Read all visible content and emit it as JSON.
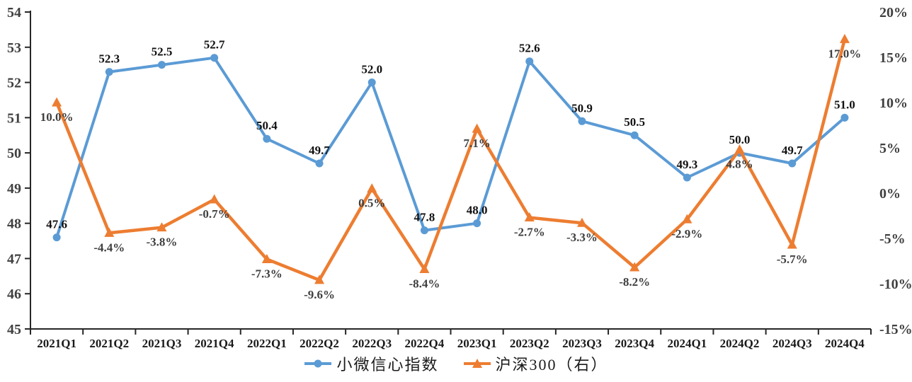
{
  "chart_data": {
    "type": "line",
    "title": "",
    "categories": [
      "2021Q1",
      "2021Q2",
      "2021Q3",
      "2021Q4",
      "2022Q1",
      "2022Q2",
      "2022Q3",
      "2022Q4",
      "2023Q1",
      "2023Q2",
      "2023Q3",
      "2023Q4",
      "2024Q1",
      "2024Q2",
      "2024Q3",
      "2024Q4"
    ],
    "series": [
      {
        "name": "小微信心指数",
        "axis": "left",
        "color": "#5B9BD5",
        "marker": "circle",
        "label_color": "#111111",
        "values": [
          47.6,
          52.3,
          52.5,
          52.7,
          50.4,
          49.7,
          52.0,
          47.8,
          48.0,
          52.6,
          50.9,
          50.5,
          49.3,
          50.0,
          49.7,
          51.0
        ],
        "labels": [
          "47.6",
          "52.3",
          "52.5",
          "52.7",
          "50.4",
          "49.7",
          "52.0",
          "47.8",
          "48.0",
          "52.6",
          "50.9",
          "50.5",
          "49.3",
          "50.0",
          "49.7",
          "51.0"
        ]
      },
      {
        "name": "沪深300（右）",
        "axis": "right",
        "color": "#ED7D31",
        "marker": "triangle",
        "label_color": "#3f3f3f",
        "values": [
          10.0,
          -4.4,
          -3.8,
          -0.7,
          -7.3,
          -9.6,
          0.5,
          -8.4,
          7.1,
          -2.7,
          -3.3,
          -8.2,
          -2.9,
          4.8,
          -5.7,
          17.0
        ],
        "labels": [
          "10.0%",
          "-4.4%",
          "-3.8%",
          "-0.7%",
          "-7.3%",
          "-9.6%",
          "0.5%",
          "-8.4%",
          "7.1%",
          "-2.7%",
          "-3.3%",
          "-8.2%",
          "-2.9%",
          "4.8%",
          "-5.7%",
          "17.0%"
        ]
      }
    ],
    "left_axis": {
      "min": 45,
      "max": 54,
      "step": 1,
      "tick_labels": [
        "54",
        "53",
        "52",
        "51",
        "50",
        "49",
        "48",
        "47",
        "46",
        "45"
      ]
    },
    "right_axis": {
      "min": -15,
      "max": 20,
      "step": 5,
      "tick_labels": [
        "20%",
        "15%",
        "10%",
        "5%",
        "0%",
        "-5%",
        "-10%",
        "-15%"
      ]
    },
    "grid": false,
    "legend_position": "bottom"
  },
  "colors": {
    "axis_line": "#262626",
    "y_tick_label": "#404040",
    "x_tick_label": "#1a1a1a",
    "background": "#ffffff"
  }
}
